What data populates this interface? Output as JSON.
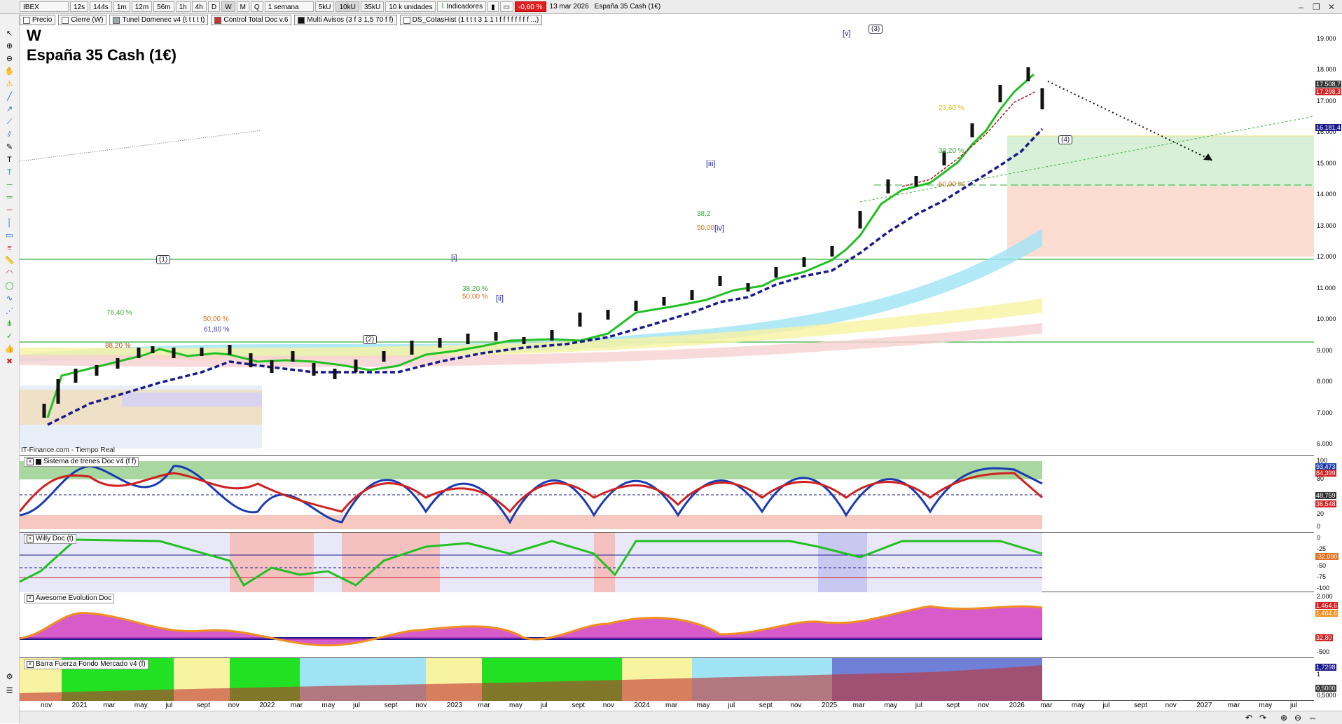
{
  "toolbar": {
    "symbol": "IBEX",
    "timeframes": [
      "12s",
      "144s",
      "1m",
      "12m",
      "56m",
      "1h",
      "4h",
      "D",
      "W",
      "M",
      "Q"
    ],
    "active_timeframe": "W",
    "period": "1 semana",
    "volume_buttons": [
      "5kU",
      "10kU",
      "35kU"
    ],
    "active_volume": "10kU",
    "units": "10 k unidades",
    "indicators_label": "Indicadores",
    "change": "-0,60 %",
    "date": "13 mar 2026",
    "instrument": "España 35 Cash (1€)"
  },
  "legend": [
    "Precio",
    "Cierre (W)",
    "Tunel Domenec v4 (t t t t t)",
    "Control Total Doc v.6",
    "Multi Avisos (3 f 3 1,5 70 f f)",
    "DS_CotasHist (1 t t t 3 1 1 t f f f f f f f f ...)"
  ],
  "main": {
    "label_w": "W",
    "title": "España 35 Cash (1€)",
    "credit": "IT-Finance.com - Tiempo Real",
    "price_ticks": [
      "19.000",
      "18.000",
      "17.000",
      "16.000",
      "15.000",
      "14.000",
      "13.000",
      "12.000",
      "11.000",
      "10.000",
      "9.000",
      "8.000",
      "7.000",
      "6.000"
    ],
    "value_badges": [
      "17.508,7",
      "17.298,3",
      "16.181,4"
    ],
    "waves": [
      "(1)",
      "(2)",
      "(3)",
      "(4)"
    ],
    "subwaves": [
      "[i]",
      "[ii]",
      "[iii]",
      "[iv]",
      "[v]"
    ],
    "fib_labels": [
      "76,40 %",
      "50,00 %",
      "61,80 %",
      "88,20 %",
      "38,20 %",
      "50,00 %",
      "38,2",
      "50,00",
      "23,60 %",
      "38,20 %",
      "50,00 %"
    ]
  },
  "panels": {
    "trenes": {
      "title": "Sistema de trenes Doc v4 (f f)",
      "ticks": [
        "100",
        "80",
        "20",
        "0"
      ],
      "badges": [
        "93,473",
        "84,399",
        "48,759",
        "36,548"
      ]
    },
    "willy": {
      "title": "Willy Doc (t)",
      "ticks": [
        "0",
        "-25",
        "-50",
        "-75",
        "-100"
      ],
      "badges": [
        "-32,090"
      ]
    },
    "awesome": {
      "title": "Awesome Evolution Doc",
      "ticks": [
        "2.000",
        "0",
        "-500"
      ],
      "badges": [
        "1.464,6",
        "1.464,6",
        "32,80"
      ]
    },
    "barra": {
      "title": "Barra Fuerza Fondo Mercado v4 (f)",
      "ticks": [
        "1",
        "0,5000"
      ],
      "badges": [
        "1,7298",
        "0,5000"
      ]
    }
  },
  "xaxis": [
    "nov",
    "2021",
    "mar",
    "may",
    "jul",
    "sept",
    "nov",
    "2022",
    "mar",
    "may",
    "jul",
    "sept",
    "nov",
    "2023",
    "mar",
    "may",
    "jul",
    "sept",
    "nov",
    "2024",
    "mar",
    "may",
    "jul",
    "sept",
    "nov",
    "2025",
    "mar",
    "may",
    "jul",
    "sept",
    "nov",
    "2026",
    "mar",
    "may",
    "jul",
    "sept",
    "nov",
    "2027",
    "mar",
    "may",
    "jul"
  ],
  "colors": {
    "green_line": "#22c022",
    "dashed_blue": "#1a1a8c",
    "red": "#d02020",
    "cyan": "#9fe3f5",
    "yellow": "#f8f3a0",
    "pink": "#f7d1d1"
  }
}
